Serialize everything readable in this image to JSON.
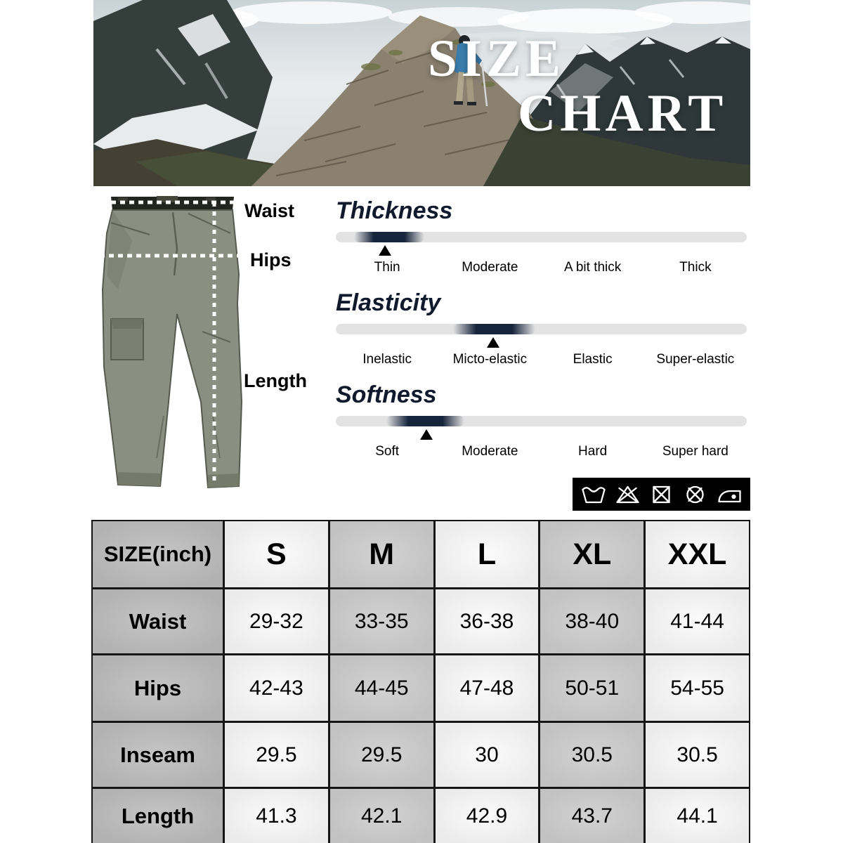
{
  "hero": {
    "title_line1": "SIZE",
    "title_line2": "CHART"
  },
  "pants_diagram": {
    "waist_label": "Waist",
    "hips_label": "Hips",
    "length_label": "Length"
  },
  "scales": [
    {
      "name": "Thickness",
      "labels": [
        "Thin",
        "Moderate",
        "A bit thick",
        "Thick"
      ],
      "selected_label": "Thin",
      "segment_left_pct": 4.5,
      "segment_width_pct": 17,
      "marker_pct": 12
    },
    {
      "name": "Elasticity",
      "labels": [
        "Inelastic",
        "Micto-elastic",
        "Elastic",
        "Super-elastic"
      ],
      "selected_label": "Micto-elastic",
      "segment_left_pct": 28.5,
      "segment_width_pct": 20,
      "marker_pct": 38.3
    },
    {
      "name": "Softness",
      "labels": [
        "Soft",
        "Moderate",
        "Hard",
        "Super hard"
      ],
      "selected_label": "Soft-Moderate",
      "segment_left_pct": 12.3,
      "segment_width_pct": 19,
      "marker_pct": 22
    }
  ],
  "care_icons": [
    "machine-wash",
    "do-not-bleach",
    "do-not-tumble-dry",
    "do-not-dry-clean",
    "iron"
  ],
  "size_table": {
    "header": [
      "SIZE(inch)",
      "S",
      "M",
      "L",
      "XL",
      "XXL"
    ],
    "rows": [
      {
        "label": "Waist",
        "values": [
          "29-32",
          "33-35",
          "36-38",
          "38-40",
          "41-44"
        ]
      },
      {
        "label": "Hips",
        "values": [
          "42-43",
          "44-45",
          "47-48",
          "50-51",
          "54-55"
        ]
      },
      {
        "label": "Inseam",
        "values": [
          "29.5",
          "29.5",
          "30",
          "30.5",
          "30.5"
        ]
      },
      {
        "label": "Length",
        "values": [
          "41.3",
          "42.1",
          "42.9",
          "43.7",
          "44.1"
        ]
      }
    ]
  },
  "colors": {
    "scale_bar_bg": "#e3e3e3",
    "scale_segment": "#16243c",
    "scale_heading": "#101a2c",
    "hero_title": "#ffffff",
    "care_strip_bg": "#000000",
    "table_cell_dark": "#b6b6b6",
    "table_cell_mid": "#c8c8c8",
    "table_cell_light": "#f3f3f3",
    "table_border": "#151515",
    "pants_fabric": "#8b8f81"
  }
}
